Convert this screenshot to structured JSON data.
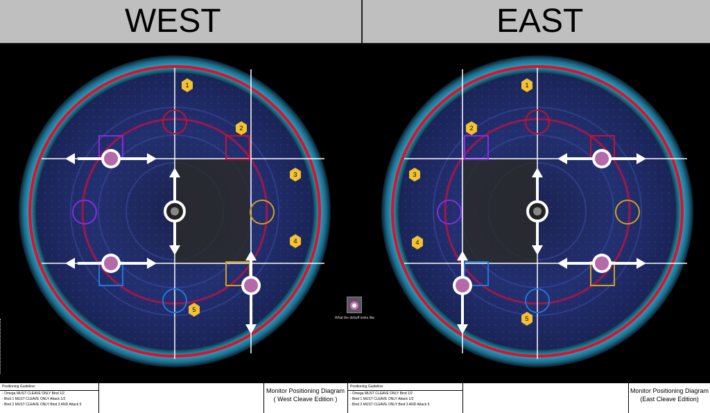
{
  "header": {
    "west_label": "WEST",
    "east_label": "EAST"
  },
  "markers": {
    "west": [
      "1",
      "2",
      "3",
      "4",
      "5"
    ],
    "east": [
      "1",
      "2",
      "3",
      "4",
      "5"
    ]
  },
  "debuff": {
    "caption": "What the debuff looks like"
  },
  "guide_west": {
    "title": "Positioning Guideline:",
    "lines": [
      "- Omega MUST CLEAVE ONLY Bind 1/2",
      "- Bind 1 MUST CLEAVE ONLY Attack 1/2",
      "- Bind 2 MUST CLEAVE ONLY Bind 3 AND Attack 5"
    ]
  },
  "guide_east": {
    "title": "Positioning Guideline:",
    "lines": [
      "- Omega MUST CLEAVE ONLY Bind 1/2",
      "- Bind 1 MUST CLEAVE ONLY Attack 1/2",
      "- Bind 2 MUST CLEAVE ONLY Bind 3 AND Attack 5"
    ]
  },
  "monitor_west": {
    "line1": "Monitor Positioning Diagram",
    "line2": "( West Cleave Edition )"
  },
  "monitor_east": {
    "line1": "Monitor Positioning Diagram",
    "line2": "(East Cleave Edition)"
  },
  "colors": {
    "header_bg": "#bfbfbf",
    "arena_red": "#e0102a",
    "waymark_red": "#c8102e",
    "waymark_yellow": "#d4a020",
    "waymark_blue": "#1e78e0",
    "waymark_purple": "#8a2be2",
    "marker_yellow": "#f2c230"
  }
}
